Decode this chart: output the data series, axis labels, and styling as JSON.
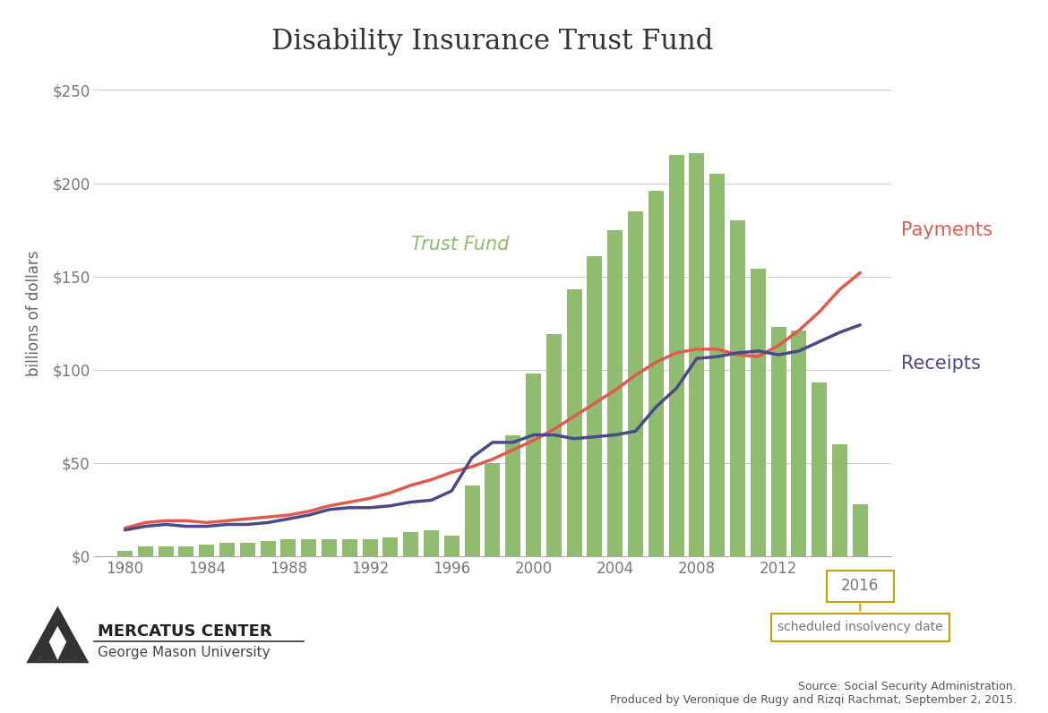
{
  "title": "Disability Insurance Trust Fund",
  "ylabel": "billions of dollars",
  "background_color": "#ffffff",
  "bar_color": "#8fbc6e",
  "payments_color": "#e05a4e",
  "receipts_color": "#4a4a8a",
  "trust_fund_label_color": "#8fbc6e",
  "years": [
    1980,
    1981,
    1982,
    1983,
    1984,
    1985,
    1986,
    1987,
    1988,
    1989,
    1990,
    1991,
    1992,
    1993,
    1994,
    1995,
    1996,
    1997,
    1998,
    1999,
    2000,
    2001,
    2002,
    2003,
    2004,
    2005,
    2006,
    2007,
    2008,
    2009,
    2010,
    2011,
    2012,
    2013,
    2014,
    2015,
    2016
  ],
  "trust_fund": [
    3,
    5,
    5,
    5,
    6,
    7,
    7,
    8,
    9,
    9,
    9,
    9,
    9,
    10,
    13,
    14,
    11,
    38,
    50,
    65,
    98,
    119,
    143,
    161,
    175,
    185,
    196,
    215,
    216,
    205,
    180,
    154,
    123,
    121,
    93,
    60,
    28
  ],
  "payments": [
    15,
    18,
    19,
    19,
    18,
    19,
    20,
    21,
    22,
    24,
    27,
    29,
    31,
    34,
    38,
    41,
    45,
    48,
    52,
    57,
    62,
    68,
    75,
    82,
    89,
    97,
    104,
    109,
    111,
    111,
    108,
    107,
    113,
    121,
    131,
    143,
    152
  ],
  "receipts": [
    14,
    16,
    17,
    16,
    16,
    17,
    17,
    18,
    20,
    22,
    25,
    26,
    26,
    27,
    29,
    30,
    35,
    53,
    61,
    61,
    65,
    65,
    63,
    64,
    65,
    67,
    80,
    90,
    106,
    107,
    109,
    110,
    108,
    110,
    115,
    120,
    124
  ],
  "insolvency_year": 2016,
  "insolvency_label": "scheduled insolvency date",
  "source_text": "Source: Social Security Administration.\nProduced by Veronique de Rugy and Rizqi Rachmat, September 2, 2015.",
  "yticks": [
    0,
    50,
    100,
    150,
    200,
    250
  ],
  "ytick_labels": [
    "$0",
    "$50",
    "$100",
    "$150",
    "$200",
    "$250"
  ],
  "xticks": [
    1980,
    1984,
    1988,
    1992,
    1996,
    2000,
    2004,
    2008,
    2012,
    2016
  ],
  "xlim": [
    1978.5,
    2017.5
  ],
  "ylim": [
    0,
    260
  ],
  "insolvency_box_color": "#c8a000",
  "grid_color": "#cccccc",
  "spine_color": "#aaaaaa",
  "tick_label_color": "#777777",
  "title_color": "#333333",
  "ylabel_color": "#666666"
}
